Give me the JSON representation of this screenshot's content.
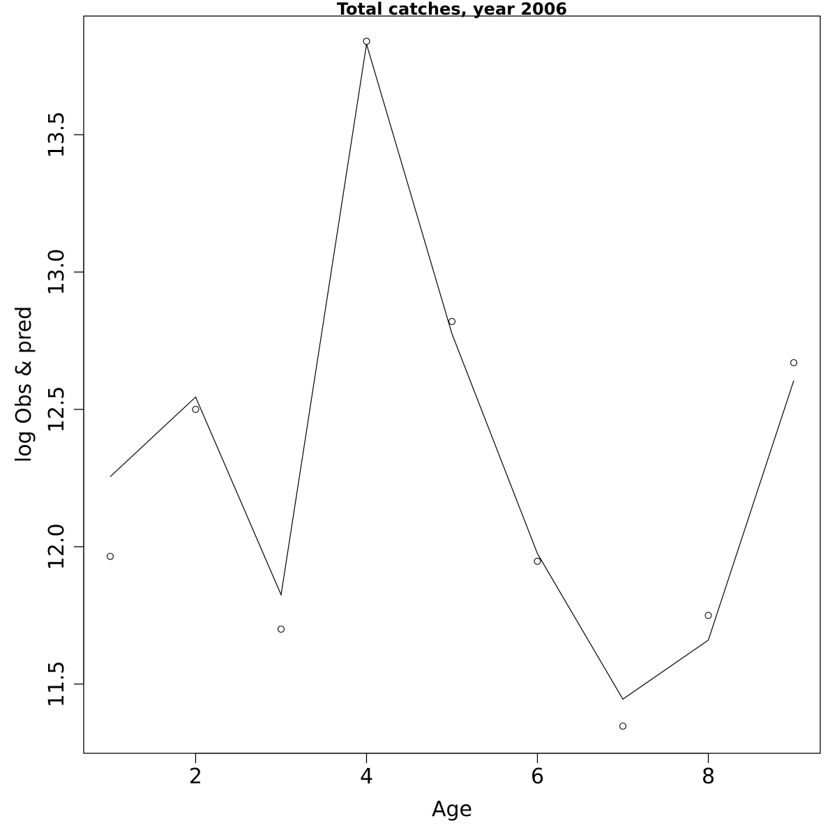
{
  "chart_data": {
    "type": "line",
    "title": "Total catches, year 2006",
    "xlabel": "Age",
    "ylabel": "log Obs & pred",
    "xlim": [
      0.69,
      9.31
    ],
    "ylim": [
      11.248,
      13.932
    ],
    "x_ticks": [
      2,
      4,
      6,
      8
    ],
    "x_tick_labels": [
      "2",
      "4",
      "6",
      "8"
    ],
    "y_ticks": [
      11.5,
      12.0,
      12.5,
      13.0,
      13.5
    ],
    "y_tick_labels": [
      "11.5",
      "12.0",
      "12.5",
      "13.0",
      "13.5"
    ],
    "grid": false,
    "legend": "none",
    "x": [
      1,
      2,
      3,
      4,
      5,
      6,
      7,
      8,
      9
    ],
    "series": [
      {
        "style": "points",
        "marker": "open-circle",
        "values": [
          11.965,
          12.5,
          11.7,
          13.84,
          12.82,
          11.947,
          11.347,
          11.75,
          12.67
        ]
      },
      {
        "style": "line",
        "values": [
          12.255,
          12.545,
          11.825,
          13.83,
          12.775,
          11.975,
          11.445,
          11.66,
          12.605
        ]
      }
    ]
  }
}
